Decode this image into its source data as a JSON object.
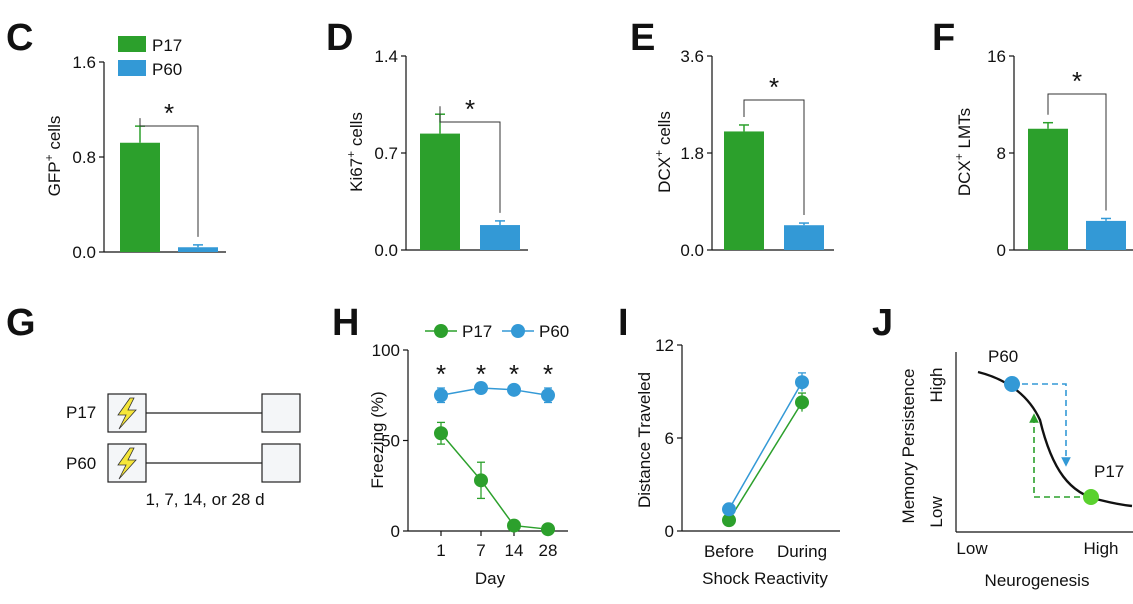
{
  "colors": {
    "p17": "#2ca02c",
    "p60": "#3399d6",
    "text": "#111111"
  },
  "legend": {
    "p17": "P17",
    "p60": "P60"
  },
  "panels": {
    "C": {
      "letter": "C",
      "ylabel_main": "GFP",
      "ylabel_sup": "+",
      "ylabel_tail": " cells",
      "star": "*"
    },
    "D": {
      "letter": "D",
      "ylabel_main": "Ki67",
      "ylabel_sup": "+",
      "ylabel_tail": " cells",
      "star": "*"
    },
    "E": {
      "letter": "E",
      "ylabel_main": "DCX",
      "ylabel_sup": "+",
      "ylabel_tail": " cells",
      "star": "*"
    },
    "F": {
      "letter": "F",
      "ylabel_main": "DCX",
      "ylabel_sup": "+",
      "ylabel_tail": " LMTs",
      "star": "*"
    },
    "G": {
      "letter": "G",
      "row1": "P17",
      "row2": "P60",
      "caption": "1, 7, 14, or 28 d"
    },
    "H": {
      "letter": "H",
      "ylabel": "Freezing (%)",
      "xlabel": "Day",
      "star": "*"
    },
    "I": {
      "letter": "I",
      "ylabel": "Distance Traveled",
      "xlabel": "Shock Reactivity"
    },
    "J": {
      "letter": "J",
      "ylabel": "Memory Persistence",
      "xlabel": "Neurogenesis",
      "y_high": "High",
      "y_low": "Low",
      "x_low": "Low",
      "x_high": "High",
      "p60_label": "P60",
      "p17_label": "P17"
    }
  },
  "chart_data": [
    {
      "panel": "C",
      "type": "bar",
      "categories": [
        "P17",
        "P60"
      ],
      "values": [
        0.92,
        0.04
      ],
      "errors": [
        0.14,
        0.02
      ],
      "yticks": [
        "0.0",
        "0.8",
        "1.6"
      ],
      "ylim": [
        0,
        1.6
      ],
      "significance": "*"
    },
    {
      "panel": "D",
      "type": "bar",
      "categories": [
        "P17",
        "P60"
      ],
      "values": [
        0.84,
        0.18
      ],
      "errors": [
        0.14,
        0.03
      ],
      "yticks": [
        "0.0",
        "0.7",
        "1.4"
      ],
      "ylim": [
        0,
        1.4
      ],
      "significance": "*"
    },
    {
      "panel": "E",
      "type": "bar",
      "categories": [
        "P17",
        "P60"
      ],
      "values": [
        2.2,
        0.46
      ],
      "errors": [
        0.12,
        0.04
      ],
      "yticks": [
        "0.0",
        "1.8",
        "3.6"
      ],
      "ylim": [
        0,
        3.6
      ],
      "significance": "*"
    },
    {
      "panel": "F",
      "type": "bar",
      "categories": [
        "P17",
        "P60"
      ],
      "values": [
        10.0,
        2.4
      ],
      "errors": [
        0.5,
        0.2
      ],
      "yticks": [
        "0",
        "8",
        "16"
      ],
      "ylim": [
        0,
        16
      ],
      "significance": "*"
    },
    {
      "panel": "H",
      "type": "line",
      "x": [
        "1",
        "7",
        "14",
        "28"
      ],
      "ylim": [
        0,
        100
      ],
      "yticks": [
        "0",
        "50",
        "100"
      ],
      "series": [
        {
          "name": "P17",
          "values": [
            54,
            28,
            3,
            1
          ],
          "errors": [
            6,
            10,
            1,
            1
          ]
        },
        {
          "name": "P60",
          "values": [
            75,
            79,
            78,
            75
          ],
          "errors": [
            4,
            2,
            2,
            4
          ]
        }
      ],
      "significance": [
        "*",
        "*",
        "*",
        "*"
      ]
    },
    {
      "panel": "I",
      "type": "line",
      "x": [
        "Before",
        "During"
      ],
      "ylim": [
        0,
        12
      ],
      "yticks": [
        "0",
        "6",
        "12"
      ],
      "series": [
        {
          "name": "P17",
          "values": [
            0.7,
            8.3
          ],
          "errors": [
            0.2,
            0.6
          ]
        },
        {
          "name": "P60",
          "values": [
            1.4,
            9.6
          ],
          "errors": [
            0.2,
            0.6
          ]
        }
      ]
    }
  ]
}
